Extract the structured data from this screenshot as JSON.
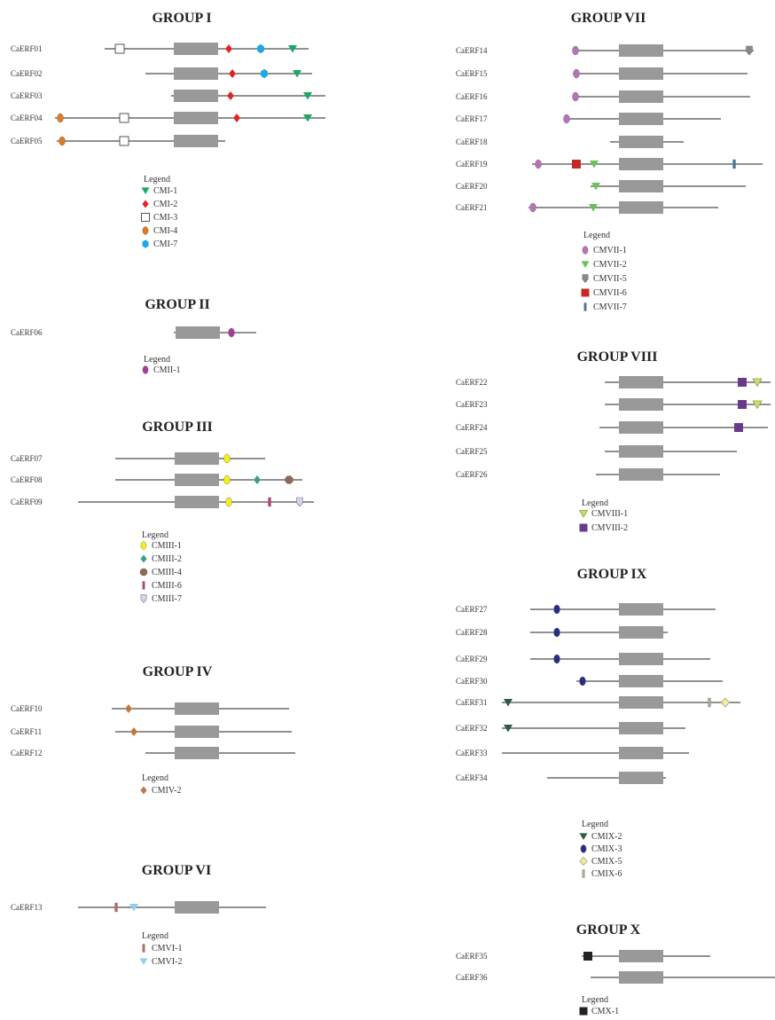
{
  "groups": [
    {
      "title": "GROUP I",
      "genes": [
        {
          "name": "CaERF01",
          "motifs": [
            "CMI-3",
            "CMI-2",
            "CMI-7",
            "CMI-1"
          ]
        },
        {
          "name": "CaERF02",
          "motifs": [
            "CMI-2",
            "CMI-7",
            "CMI-1"
          ]
        },
        {
          "name": "CaERF03",
          "motifs": [
            "CMI-2",
            "CMI-1"
          ]
        },
        {
          "name": "CaERF04",
          "motifs": [
            "CMI-4",
            "CMI-3",
            "CMI-2",
            "CMI-1"
          ]
        },
        {
          "name": "CaERF05",
          "motifs": [
            "CMI-4",
            "CMI-3"
          ]
        }
      ],
      "legend_title": "Legend",
      "legend": [
        {
          "label": "CMI-1",
          "shape": "tri-down",
          "color": "#1aa866"
        },
        {
          "label": "CMI-2",
          "shape": "diamond",
          "color": "#e02424"
        },
        {
          "label": "CMI-3",
          "shape": "square-open",
          "color": "#ffffff"
        },
        {
          "label": "CMI-4",
          "shape": "ellipse",
          "color": "#e07b20"
        },
        {
          "label": "CMI-7",
          "shape": "hexagon",
          "color": "#1ea8e6"
        }
      ]
    },
    {
      "title": "GROUP II",
      "genes": [
        {
          "name": "CaERF06",
          "motifs": [
            "CMII-1"
          ]
        }
      ],
      "legend_title": "Legend",
      "legend": [
        {
          "label": "CMII-1",
          "shape": "ellipse",
          "color": "#a83c9c"
        }
      ]
    },
    {
      "title": "GROUP III",
      "genes": [
        {
          "name": "CaERF07",
          "motifs": [
            "CMIII-1"
          ]
        },
        {
          "name": "CaERF08",
          "motifs": [
            "CMIII-1",
            "CMIII-2",
            "CMIII-4"
          ]
        },
        {
          "name": "CaERF09",
          "motifs": [
            "CMIII-1",
            "CMIII-6",
            "CMIII-7"
          ]
        }
      ],
      "legend_title": "Legend",
      "legend": [
        {
          "label": "CMIII-1",
          "shape": "ellipse",
          "color": "#f4ef1a"
        },
        {
          "label": "CMIII-2",
          "shape": "diamond",
          "color": "#3aa08a"
        },
        {
          "label": "CMIII-4",
          "shape": "octagon",
          "color": "#8a6a5a"
        },
        {
          "label": "CMIII-6",
          "shape": "bar",
          "color": "#c23a7a"
        },
        {
          "label": "CMIII-7",
          "shape": "shield",
          "color": "#d8d0f2"
        }
      ]
    },
    {
      "title": "GROUP IV",
      "genes": [
        {
          "name": "CaERF10",
          "motifs": [
            "CMIV-2"
          ]
        },
        {
          "name": "CaERF11",
          "motifs": [
            "CMIV-2"
          ]
        },
        {
          "name": "CaERF12",
          "motifs": []
        }
      ],
      "legend_title": "Legend",
      "legend": [
        {
          "label": "CMIV-2",
          "shape": "diamond",
          "color": "#c07840"
        }
      ]
    },
    {
      "title": "GROUP VI",
      "genes": [
        {
          "name": "CaERF13",
          "motifs": [
            "CMVI-1",
            "CMVI-2"
          ]
        }
      ],
      "legend_title": "Legend",
      "legend": [
        {
          "label": "CMVI-1",
          "shape": "bar",
          "color": "#c06a6a"
        },
        {
          "label": "CMVI-2",
          "shape": "tri-down",
          "color": "#8fd0ee"
        }
      ]
    },
    {
      "title": "GROUP VII",
      "genes": [
        {
          "name": "CaERF14",
          "motifs": [
            "CMVII-1",
            "CMVII-5"
          ]
        },
        {
          "name": "CaERF15",
          "motifs": [
            "CMVII-1"
          ]
        },
        {
          "name": "CaERF16",
          "motifs": [
            "CMVII-1"
          ]
        },
        {
          "name": "CaERF17",
          "motifs": [
            "CMVII-1"
          ]
        },
        {
          "name": "CaERF18",
          "motifs": []
        },
        {
          "name": "CaERF19",
          "motifs": [
            "CMVII-1",
            "CMVII-6",
            "CMVII-2",
            "CMVII-7"
          ]
        },
        {
          "name": "CaERF20",
          "motifs": [
            "CMVII-2"
          ]
        },
        {
          "name": "CaERF21",
          "motifs": [
            "CMVII-1",
            "CMVII-2"
          ]
        }
      ],
      "legend_title": "Legend",
      "legend": [
        {
          "label": "CMVII-1",
          "shape": "ellipse",
          "color": "#b772b8"
        },
        {
          "label": "CMVII-2",
          "shape": "tri-down",
          "color": "#6cc05a"
        },
        {
          "label": "CMVII-5",
          "shape": "shield",
          "color": "#888888"
        },
        {
          "label": "CMVII-6",
          "shape": "square",
          "color": "#c42828"
        },
        {
          "label": "CMVII-7",
          "shape": "bar",
          "color": "#3a7aa8"
        }
      ]
    },
    {
      "title": "GROUP VIII",
      "genes": [
        {
          "name": "CaERF22",
          "motifs": [
            "CMVIII-2",
            "CMVIII-1"
          ]
        },
        {
          "name": "CaERF23",
          "motifs": [
            "CMVIII-2",
            "CMVIII-1"
          ]
        },
        {
          "name": "CaERF24",
          "motifs": [
            "CMVIII-2"
          ]
        },
        {
          "name": "CaERF25",
          "motifs": []
        },
        {
          "name": "CaERF26",
          "motifs": []
        }
      ],
      "legend_title": "Legend",
      "legend": [
        {
          "label": "CMVIII-1",
          "shape": "tri-down-open",
          "color": "#c8e070"
        },
        {
          "label": "CMVIII-2",
          "shape": "square",
          "color": "#6a3a8a"
        }
      ]
    },
    {
      "title": "GROUP IX",
      "genes": [
        {
          "name": "CaERF27",
          "motifs": [
            "CMIX-3"
          ]
        },
        {
          "name": "CaERF28",
          "motifs": [
            "CMIX-3"
          ]
        },
        {
          "name": "CaERF29",
          "motifs": [
            "CMIX-3"
          ]
        },
        {
          "name": "CaERF30",
          "motifs": [
            "CMIX-3"
          ]
        },
        {
          "name": "CaERF31",
          "motifs": [
            "CMIX-2",
            "CMIX-6",
            "CMIX-5"
          ]
        },
        {
          "name": "CaERF32",
          "motifs": [
            "CMIX-2"
          ]
        },
        {
          "name": "CaERF33",
          "motifs": []
        },
        {
          "name": "CaERF34",
          "motifs": []
        }
      ],
      "legend_title": "Legend",
      "legend": [
        {
          "label": "CMIX-2",
          "shape": "tri-down",
          "color": "#2e5a4a"
        },
        {
          "label": "CMIX-3",
          "shape": "ellipse",
          "color": "#2a2a8a"
        },
        {
          "label": "CMIX-5",
          "shape": "diamond-open",
          "color": "#f6f08a"
        },
        {
          "label": "CMIX-6",
          "shape": "bar",
          "color": "#b8a890"
        }
      ]
    },
    {
      "title": "GROUP X",
      "genes": [
        {
          "name": "CaERF35",
          "motifs": [
            "CMX-1"
          ]
        },
        {
          "name": "CaERF36",
          "motifs": []
        }
      ],
      "legend_title": "Legend",
      "legend": [
        {
          "label": "CMX-1",
          "shape": "square",
          "color": "#222222"
        }
      ]
    }
  ],
  "domain_color": "#999999"
}
